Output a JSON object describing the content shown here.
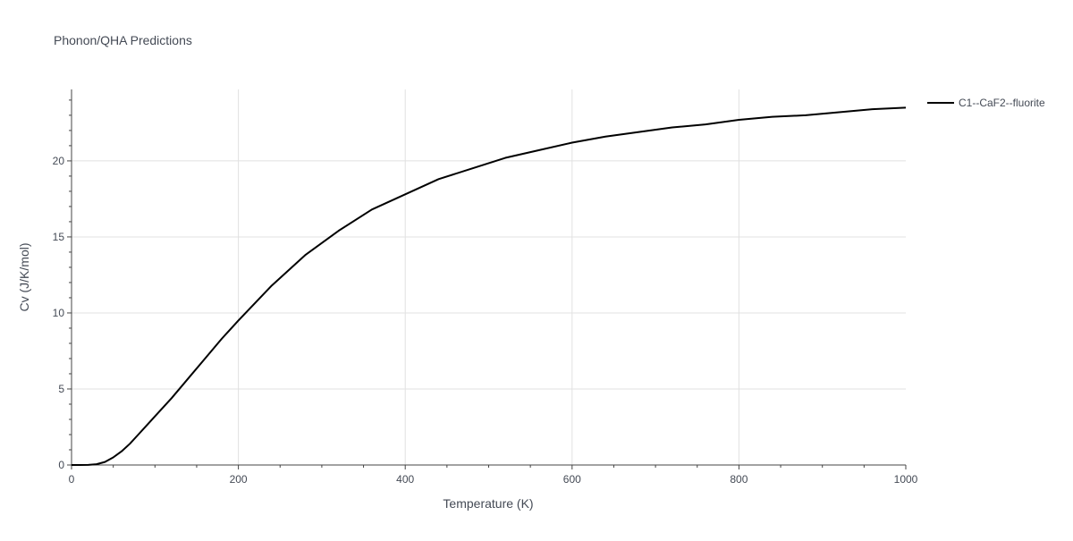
{
  "chart_data": {
    "type": "line",
    "title": "Phonon/QHA Predictions",
    "xlabel": "Temperature (K)",
    "ylabel": "Cv (J/K/mol)",
    "xlim": [
      0,
      1000
    ],
    "ylim": [
      0,
      24.7
    ],
    "x_ticks": [
      0,
      200,
      400,
      600,
      800,
      1000
    ],
    "y_ticks": [
      0,
      5,
      10,
      15,
      20
    ],
    "grid": true,
    "legend_position": "top-right",
    "series": [
      {
        "name": "C1--CaF2--fluorite",
        "color": "#000000",
        "x": [
          0,
          10,
          20,
          30,
          40,
          50,
          60,
          70,
          80,
          90,
          100,
          120,
          140,
          160,
          180,
          200,
          240,
          280,
          320,
          360,
          400,
          440,
          480,
          520,
          560,
          600,
          640,
          680,
          720,
          760,
          800,
          840,
          880,
          920,
          960,
          1000
        ],
        "y": [
          0,
          0,
          0.01,
          0.05,
          0.2,
          0.5,
          0.9,
          1.4,
          2.0,
          2.6,
          3.2,
          4.4,
          5.7,
          7.0,
          8.3,
          9.5,
          11.8,
          13.8,
          15.4,
          16.8,
          17.8,
          18.8,
          19.5,
          20.2,
          20.7,
          21.2,
          21.6,
          21.9,
          22.2,
          22.4,
          22.7,
          22.9,
          23.0,
          23.2,
          23.4,
          23.5
        ]
      }
    ]
  }
}
